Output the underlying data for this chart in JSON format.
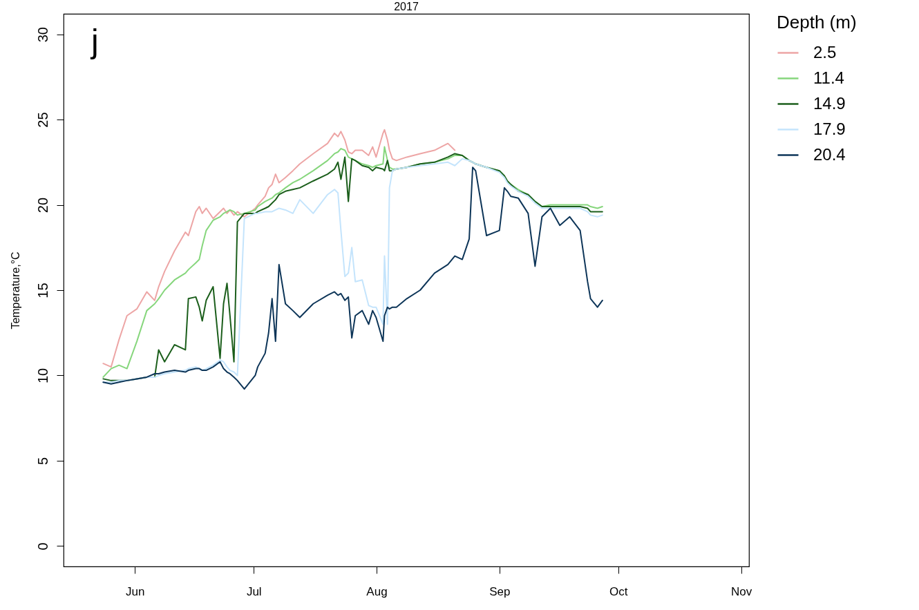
{
  "chart_data": {
    "type": "line",
    "title": "2017",
    "ylabel": "Temperature,°C",
    "legend_title": "Depth (m)",
    "legend": "right",
    "grid": false,
    "line_style": "solid",
    "marker": "none",
    "annotations": [
      "j"
    ],
    "xlim": [
      "2017-05-14",
      "2017-11-03"
    ],
    "ylim": [
      -1.2,
      31.2
    ],
    "xticks": [
      {
        "value": "2017-06-01",
        "label": "Jun"
      },
      {
        "value": "2017-07-01",
        "label": "Jul"
      },
      {
        "value": "2017-08-01",
        "label": "Aug"
      },
      {
        "value": "2017-09-01",
        "label": "Sep"
      },
      {
        "value": "2017-10-01",
        "label": "Oct"
      },
      {
        "value": "2017-11-01",
        "label": "Nov"
      }
    ],
    "yticks": [
      0,
      5,
      10,
      15,
      20,
      25,
      30
    ],
    "x": [
      "2017-05-24",
      "2017-05-26",
      "2017-05-28",
      "2017-05-30",
      "2017-06-01T12:00",
      "2017-06-04",
      "2017-06-06",
      "2017-06-07",
      "2017-06-08T12:00",
      "2017-06-11",
      "2017-06-13T18:00",
      "2017-06-14T12:00",
      "2017-06-16T09:00",
      "2017-06-17T06:00",
      "2017-06-18",
      "2017-06-19",
      "2017-06-20T18:00",
      "2017-06-22T12:00",
      "2017-06-23T09:00",
      "2017-06-24T06:00",
      "2017-06-25",
      "2017-06-26",
      "2017-06-26T21:00",
      "2017-06-28T15:00",
      "2017-07-01T09:00",
      "2017-07-02",
      "2017-07-03T21:00",
      "2017-07-04T18:00",
      "2017-07-05T15:00",
      "2017-07-06T12:00",
      "2017-07-07T09:00",
      "2017-07-09",
      "2017-07-10T21:00",
      "2017-07-12T15:00",
      "2017-07-16",
      "2017-07-19T15:00",
      "2017-07-21T09:00",
      "2017-07-22T06:00",
      "2017-07-23",
      "2017-07-24",
      "2017-07-24T21:00",
      "2017-07-25T18:00",
      "2017-07-26T15:00",
      "2017-07-28T09:00",
      "2017-07-30",
      "2017-07-31",
      "2017-07-31T21:00",
      "2017-08-02T15:00",
      "2017-08-03",
      "2017-08-03T18:00",
      "2017-08-04T06:00",
      "2017-08-05",
      "2017-08-06",
      "2017-08-08T15:00",
      "2017-08-12",
      "2017-08-15T15:00",
      "2017-08-19",
      "2017-08-20T18:00",
      "2017-08-22T15:00",
      "2017-08-24T09:00",
      "2017-08-25T06:00",
      "2017-08-26",
      "2017-08-28T18:00",
      "2017-09-01",
      "2017-09-02T06:00",
      "2017-09-03",
      "2017-09-03T21:00",
      "2017-09-05T18:00",
      "2017-09-08T06:00",
      "2017-09-10",
      "2017-09-11T18:00",
      "2017-09-13T21:00",
      "2017-09-16T06:00",
      "2017-09-18T18:00",
      "2017-09-21T09:00",
      "2017-09-23T06:00",
      "2017-09-24",
      "2017-09-25T18:00",
      "2017-09-27"
    ],
    "series": [
      {
        "name": "2.5",
        "color": "#eda5a5",
        "values": [
          10.7,
          10.5,
          12.1,
          13.5,
          13.9,
          14.9,
          14.4,
          15.2,
          16.1,
          17.3,
          18.4,
          18.2,
          19.6,
          19.9,
          19.5,
          19.8,
          19.2,
          19.6,
          19.8,
          19.5,
          19.7,
          19.4,
          19.6,
          19.3,
          19.8,
          20.0,
          20.5,
          21.0,
          21.2,
          21.8,
          21.3,
          21.6,
          22.0,
          22.4,
          23.0,
          23.6,
          24.2,
          24.0,
          24.3,
          23.8,
          23.1,
          23.0,
          23.2,
          23.2,
          22.9,
          23.4,
          22.8,
          24.2,
          24.4,
          23.8,
          23.2,
          22.7,
          22.6,
          22.8,
          23.0,
          23.2,
          23.6,
          23.2,
          null,
          null,
          null,
          null,
          null,
          null,
          null,
          null,
          null,
          null,
          null,
          null,
          null,
          null,
          null,
          null,
          null,
          null,
          null,
          null,
          null
        ]
      },
      {
        "name": "11.4",
        "color": "#86d67c",
        "values": [
          9.9,
          10.4,
          10.6,
          10.4,
          12.0,
          13.8,
          14.2,
          14.5,
          15.0,
          15.6,
          16.0,
          16.2,
          16.6,
          16.8,
          17.6,
          18.5,
          19.1,
          19.3,
          19.5,
          19.6,
          19.7,
          19.6,
          19.4,
          19.5,
          19.7,
          19.9,
          20.2,
          20.3,
          20.4,
          20.6,
          20.7,
          21.0,
          21.3,
          21.5,
          22.0,
          22.6,
          23.0,
          23.1,
          23.3,
          23.2,
          22.8,
          22.7,
          22.6,
          22.4,
          22.3,
          22.2,
          22.3,
          22.4,
          23.4,
          22.6,
          22.2,
          22.1,
          22.1,
          22.2,
          22.4,
          22.5,
          22.7,
          22.9,
          22.9,
          22.6,
          22.5,
          22.4,
          22.2,
          22.0,
          21.7,
          21.4,
          21.2,
          20.9,
          20.6,
          20.2,
          19.9,
          20.0,
          20.0,
          20.0,
          20.0,
          20.0,
          19.9,
          19.8,
          19.9
        ]
      },
      {
        "name": "14.9",
        "color": "#1b5e1b",
        "values": [
          9.8,
          9.7,
          9.7,
          9.7,
          9.8,
          9.9,
          9.9,
          11.5,
          10.8,
          11.8,
          11.5,
          14.5,
          14.6,
          14.0,
          13.2,
          14.4,
          15.2,
          11.0,
          14.2,
          15.4,
          13.5,
          10.8,
          19.0,
          19.5,
          19.5,
          19.6,
          19.8,
          19.9,
          20.1,
          20.3,
          20.6,
          20.8,
          20.9,
          21.0,
          21.4,
          21.8,
          22.1,
          22.5,
          21.5,
          22.8,
          20.2,
          22.7,
          22.6,
          22.3,
          22.2,
          22.0,
          22.2,
          22.1,
          22.0,
          22.6,
          22.0,
          22.0,
          22.1,
          22.2,
          22.4,
          22.5,
          22.8,
          23.0,
          22.9,
          22.6,
          22.5,
          22.4,
          22.2,
          22.0,
          21.7,
          21.4,
          21.2,
          20.8,
          20.6,
          20.2,
          19.9,
          19.9,
          19.9,
          19.9,
          19.9,
          19.8,
          19.6,
          19.6,
          19.6
        ]
      },
      {
        "name": "17.9",
        "color": "#c4e4fc",
        "values": [
          9.6,
          9.6,
          9.7,
          9.7,
          9.8,
          9.9,
          9.9,
          10.0,
          10.1,
          10.2,
          10.3,
          10.4,
          10.5,
          10.4,
          10.3,
          10.4,
          10.6,
          10.9,
          10.8,
          10.5,
          10.3,
          10.2,
          10.0,
          19.2,
          19.5,
          19.5,
          19.6,
          19.6,
          19.6,
          19.7,
          19.8,
          19.7,
          19.5,
          20.3,
          19.5,
          20.6,
          20.9,
          20.7,
          18.5,
          15.8,
          16.0,
          17.5,
          15.5,
          15.6,
          14.1,
          14.0,
          14.0,
          13.0,
          17.0,
          13.0,
          21.0,
          22.0,
          22.1,
          22.2,
          22.3,
          22.4,
          22.5,
          22.3,
          22.7,
          22.6,
          22.5,
          22.4,
          22.2,
          21.9,
          21.6,
          21.3,
          21.1,
          20.8,
          20.5,
          20.1,
          19.8,
          19.8,
          19.8,
          19.8,
          19.8,
          19.6,
          19.4,
          19.3,
          19.4
        ]
      },
      {
        "name": "20.4",
        "color": "#0d3558",
        "values": [
          9.6,
          9.5,
          9.6,
          9.7,
          9.8,
          9.9,
          10.1,
          10.1,
          10.2,
          10.3,
          10.2,
          10.3,
          10.4,
          10.4,
          10.3,
          10.3,
          10.5,
          10.8,
          10.4,
          10.2,
          10.1,
          9.9,
          9.7,
          9.2,
          10.0,
          10.5,
          11.3,
          12.5,
          14.5,
          12.0,
          16.5,
          14.2,
          13.8,
          13.4,
          14.2,
          14.7,
          14.9,
          14.7,
          14.8,
          14.4,
          14.6,
          12.2,
          13.5,
          13.8,
          13.0,
          13.8,
          13.4,
          12.0,
          13.5,
          14.0,
          13.9,
          14.0,
          14.0,
          14.5,
          15.0,
          16.0,
          16.5,
          17.0,
          16.8,
          18.0,
          22.2,
          22.0,
          18.2,
          18.5,
          21.0,
          20.8,
          20.5,
          20.4,
          19.5,
          16.4,
          19.3,
          19.8,
          18.8,
          19.3,
          18.5,
          15.5,
          14.5,
          14.0,
          14.4
        ]
      }
    ]
  }
}
